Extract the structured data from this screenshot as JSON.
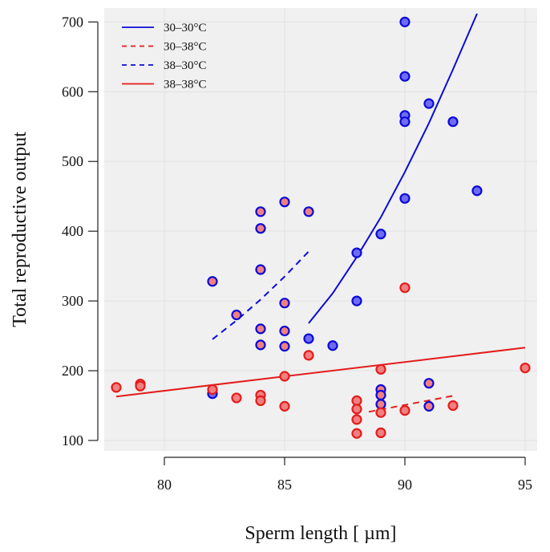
{
  "chart_data": {
    "type": "scatter",
    "xlabel": "Sperm length [ µm]",
    "ylabel": "Total reproductive output",
    "xlim": [
      77.5,
      95.5
    ],
    "ylim": [
      85,
      720
    ],
    "xticks": [
      80,
      85,
      90,
      95
    ],
    "yticks": [
      100,
      200,
      300,
      400,
      500,
      600,
      700
    ],
    "grid": true,
    "legend_position": "top-left",
    "colors": {
      "blue": "#0b0bd8",
      "red": "#e51c1c",
      "blue_fill": "#6f6bf2",
      "red_fill": "#f08080",
      "panel": "#f0f0f0"
    },
    "legend": [
      {
        "label": "30–30°C",
        "color": "#0b0bd8",
        "dash": "solid"
      },
      {
        "label": "30–38°C",
        "color": "#e51c1c",
        "dash": "dashed"
      },
      {
        "label": "38–30°C",
        "color": "#0b0bd8",
        "dash": "dashed"
      },
      {
        "label": "38–38°C",
        "color": "#e51c1c",
        "dash": "solid"
      }
    ],
    "points": [
      {
        "x": 90,
        "y": 700,
        "edge": "blue",
        "fill": "blue"
      },
      {
        "x": 90,
        "y": 622,
        "edge": "blue",
        "fill": "blue"
      },
      {
        "x": 91,
        "y": 583,
        "edge": "blue",
        "fill": "blue"
      },
      {
        "x": 90,
        "y": 566,
        "edge": "blue",
        "fill": "blue"
      },
      {
        "x": 90,
        "y": 557,
        "edge": "blue",
        "fill": "blue"
      },
      {
        "x": 92,
        "y": 557,
        "edge": "blue",
        "fill": "blue"
      },
      {
        "x": 93,
        "y": 458,
        "edge": "blue",
        "fill": "blue"
      },
      {
        "x": 90,
        "y": 447,
        "edge": "blue",
        "fill": "blue"
      },
      {
        "x": 89,
        "y": 396,
        "edge": "blue",
        "fill": "blue"
      },
      {
        "x": 88,
        "y": 369,
        "edge": "blue",
        "fill": "blue"
      },
      {
        "x": 88,
        "y": 300,
        "edge": "blue",
        "fill": "blue"
      },
      {
        "x": 86,
        "y": 246,
        "edge": "blue",
        "fill": "blue"
      },
      {
        "x": 87,
        "y": 236,
        "edge": "blue",
        "fill": "blue"
      },
      {
        "x": 82,
        "y": 167,
        "edge": "blue",
        "fill": "blue"
      },
      {
        "x": 85,
        "y": 442,
        "edge": "blue",
        "fill": "red"
      },
      {
        "x": 84,
        "y": 428,
        "edge": "blue",
        "fill": "red"
      },
      {
        "x": 86,
        "y": 428,
        "edge": "blue",
        "fill": "red"
      },
      {
        "x": 84,
        "y": 404,
        "edge": "blue",
        "fill": "red"
      },
      {
        "x": 84,
        "y": 345,
        "edge": "blue",
        "fill": "red"
      },
      {
        "x": 82,
        "y": 328,
        "edge": "blue",
        "fill": "red"
      },
      {
        "x": 85,
        "y": 297,
        "edge": "blue",
        "fill": "red"
      },
      {
        "x": 83,
        "y": 280,
        "edge": "blue",
        "fill": "red"
      },
      {
        "x": 84,
        "y": 260,
        "edge": "blue",
        "fill": "red"
      },
      {
        "x": 85,
        "y": 257,
        "edge": "blue",
        "fill": "red"
      },
      {
        "x": 84,
        "y": 237,
        "edge": "blue",
        "fill": "red"
      },
      {
        "x": 85,
        "y": 235,
        "edge": "blue",
        "fill": "red"
      },
      {
        "x": 89,
        "y": 173,
        "edge": "blue",
        "fill": "red"
      },
      {
        "x": 89,
        "y": 165,
        "edge": "blue",
        "fill": "red"
      },
      {
        "x": 89,
        "y": 152,
        "edge": "blue",
        "fill": "red"
      },
      {
        "x": 91,
        "y": 182,
        "edge": "blue",
        "fill": "red"
      },
      {
        "x": 91,
        "y": 149,
        "edge": "blue",
        "fill": "red"
      },
      {
        "x": 88,
        "y": 157,
        "edge": "red",
        "fill": "red"
      },
      {
        "x": 88,
        "y": 145,
        "edge": "red",
        "fill": "red"
      },
      {
        "x": 88,
        "y": 130,
        "edge": "red",
        "fill": "red"
      },
      {
        "x": 88,
        "y": 110,
        "edge": "red",
        "fill": "red"
      },
      {
        "x": 89,
        "y": 140,
        "edge": "red",
        "fill": "red"
      },
      {
        "x": 89,
        "y": 111,
        "edge": "red",
        "fill": "red"
      },
      {
        "x": 89,
        "y": 202,
        "edge": "red",
        "fill": "red"
      },
      {
        "x": 90,
        "y": 143,
        "edge": "red",
        "fill": "red"
      },
      {
        "x": 90,
        "y": 319,
        "edge": "red",
        "fill": "red"
      },
      {
        "x": 92,
        "y": 150,
        "edge": "red",
        "fill": "red"
      },
      {
        "x": 95,
        "y": 204,
        "edge": "red",
        "fill": "red"
      },
      {
        "x": 78,
        "y": 176,
        "edge": "red",
        "fill": "red"
      },
      {
        "x": 79,
        "y": 181,
        "edge": "red",
        "fill": "red"
      },
      {
        "x": 79,
        "y": 178,
        "edge": "red",
        "fill": "red"
      },
      {
        "x": 82,
        "y": 173,
        "edge": "red",
        "fill": "red"
      },
      {
        "x": 83,
        "y": 161,
        "edge": "red",
        "fill": "red"
      },
      {
        "x": 84,
        "y": 165,
        "edge": "red",
        "fill": "red"
      },
      {
        "x": 84,
        "y": 157,
        "edge": "red",
        "fill": "red"
      },
      {
        "x": 85,
        "y": 192,
        "edge": "red",
        "fill": "red"
      },
      {
        "x": 85,
        "y": 149,
        "edge": "red",
        "fill": "red"
      },
      {
        "x": 86,
        "y": 222,
        "edge": "red",
        "fill": "red"
      }
    ],
    "fit_lines": [
      {
        "name": "30–30°C",
        "color": "#0b0bd8",
        "dash": "solid",
        "x": [
          86,
          87,
          88,
          89,
          90,
          91,
          92,
          93
        ],
        "y": [
          268,
          311,
          363,
          420,
          485,
          555,
          632,
          712
        ]
      },
      {
        "name": "30–38°C",
        "color": "#e51c1c",
        "dash": "dashed",
        "x": [
          88.5,
          92
        ],
        "y": [
          141,
          164
        ]
      },
      {
        "name": "38–30°C",
        "color": "#0b0bd8",
        "dash": "dashed",
        "x": [
          82,
          83,
          84,
          85,
          86
        ],
        "y": [
          245,
          272,
          302,
          335,
          371
        ]
      },
      {
        "name": "38–38°C",
        "color": "#e51c1c",
        "dash": "solid",
        "x": [
          78,
          95
        ],
        "y": [
          163,
          233
        ]
      }
    ]
  }
}
